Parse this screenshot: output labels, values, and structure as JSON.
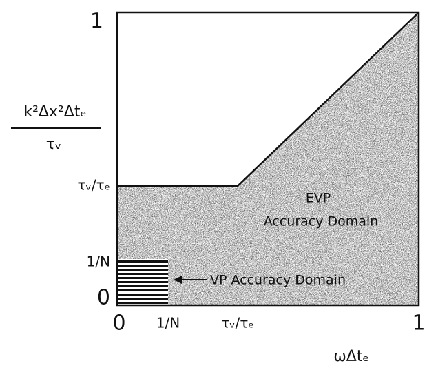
{
  "axes": {
    "y_label": {
      "numerator": "k²Δx²Δtₑ",
      "denominator": "τᵥ"
    },
    "x_label": "ωΔtₑ",
    "y_ticks": [
      "1",
      "τᵥ/τₑ",
      "1/N",
      "0"
    ],
    "x_ticks": [
      "0",
      "1/N",
      "τᵥ/τₑ",
      "1"
    ]
  },
  "regions": {
    "evp": {
      "line1": "EVP",
      "line2": "Accuracy Domain"
    },
    "vp": "VP Accuracy Domain"
  }
}
